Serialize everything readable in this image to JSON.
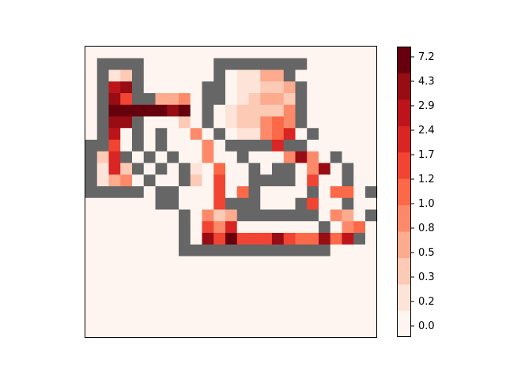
{
  "chart_data": {
    "type": "heatmap",
    "title": "",
    "xlabel": "",
    "ylabel": "",
    "x_ticks": "none",
    "y_ticks": "none",
    "grid": false,
    "colormap": "Reds (discrete)",
    "wall_color": "#666666",
    "legend_placement": "colorbar-right",
    "colorbar": {
      "tick_labels": [
        "0.0",
        "0.2",
        "0.3",
        "0.5",
        "0.8",
        "1.0",
        "1.2",
        "1.7",
        "2.4",
        "2.9",
        "4.3",
        "7.2"
      ],
      "level_colors": [
        "#fff5f0",
        "#fee4d8",
        "#fdcab5",
        "#fcab8f",
        "#fc8a6a",
        "#fb6949",
        "#f14432",
        "#d92523",
        "#bc141a",
        "#980c13",
        "#67000d"
      ]
    },
    "cell_legend": {
      "W": "wall",
      "0": "0.0",
      "1": "0.2",
      "2": "0.3",
      "3": "0.5",
      "4": "0.8",
      "5": "1.0",
      "6": "1.2",
      "7": "1.7",
      "8": "2.4",
      "9": "2.9",
      "a": "4.3",
      "b": "7.2"
    },
    "rows": [
      "0000000000000000000000000",
      "0WWWW000000WWWWWWWW0000000",
      "0W12W000000W01133W0000000",
      "0W89W00000WW011223W0000000",
      "0W96WW3340WW012332W0000000",
      "0Wbaaaa9b0W0122224W0000000",
      "0W99W00020W0122454W0000000",
      "0W80W0W0040W0114570W0000000",
      "WW60W0W00040WWWW7WW000000000",
      "W27W0W0W00400W0004940W000000",
      "W172W0W0W10500W0WW0490W000000",
      "W1340W00W20600WWWW0600W000000",
      "WWWWW0WW000605W0000W0550W0000",
      "000000WW0006WWW000W600W0000",
      "00000000W0423WWWWWWW0430W0000",
      "00000000W06470000000W0450W000",
      "00000000W096b6669655958W000",
      "00000000WWWWWWWWWWWWW000",
      "000000000000000000000000",
      "000000000000000000000000",
      "000000000000000000000000",
      "000000000000000000000000",
      "000000000000000000000000",
      "000000000000000000000000",
      "000000000000000000000000"
    ]
  }
}
